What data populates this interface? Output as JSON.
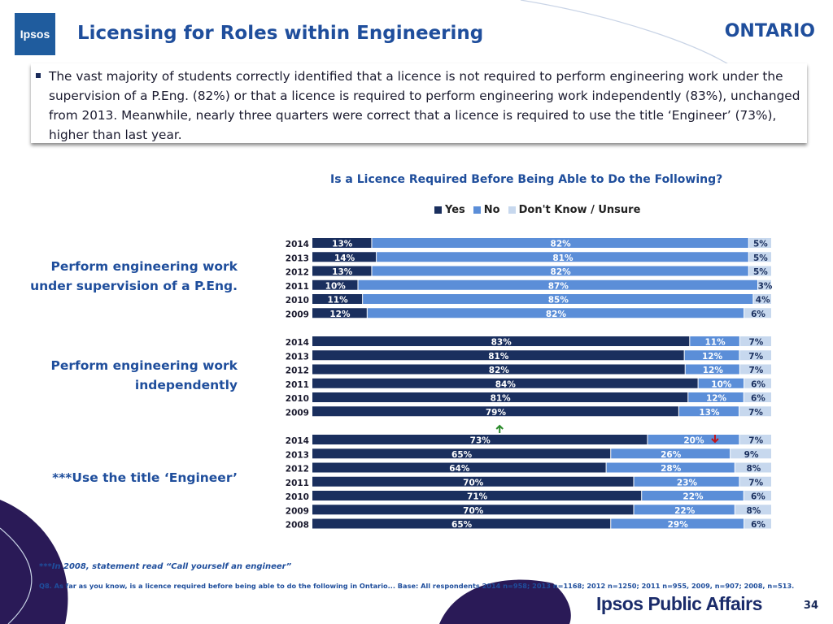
{
  "header": {
    "logo_text": "Ipsos",
    "title": "Licensing for Roles within Engineering",
    "region": "ONTARIO"
  },
  "summary": "The vast majority of students correctly identified that a licence is not required to perform engineering work under the supervision of a P.Eng. (82%) or that a licence is required to perform engineering work independently (83%), unchanged from 2013.  Meanwhile, nearly three quarters were correct that a licence is required to use the title ‘Engineer’ (73%), higher than last year.",
  "footer": {
    "footnote": "***In 2008, statement read “Call yourself an engineer”",
    "source": "Q8. As far as you know, is a licence required before being able to do the following in Ontario... Base: All respondents 2014 n=958;  2013 n=1168; 2012 n=1250; 2011 n=955, 2009, n=907; 2008, n=513.",
    "brand": "Ipsos Public Affairs",
    "page_number": "34"
  },
  "chart_data": {
    "type": "bar",
    "orientation": "horizontal",
    "stacked": true,
    "title": "Is a Licence Required Before Being Able to Do the Following?",
    "legend_position": "top",
    "xlim": [
      0,
      100
    ],
    "series_names": [
      "Yes",
      "No",
      "Don't Know / Unsure"
    ],
    "colors": {
      "Yes": "#1a2f5e",
      "No": "#5b8ed8",
      "Don't Know / Unsure": "#c7d8ee"
    },
    "groups": [
      {
        "label": "Perform engineering work under supervision of a P.Eng.",
        "rows": [
          {
            "year": "2014",
            "values": [
              13,
              82,
              5
            ]
          },
          {
            "year": "2013",
            "values": [
              14,
              81,
              5
            ]
          },
          {
            "year": "2012",
            "values": [
              13,
              82,
              5
            ]
          },
          {
            "year": "2011",
            "values": [
              10,
              87,
              3
            ]
          },
          {
            "year": "2010",
            "values": [
              11,
              85,
              4
            ]
          },
          {
            "year": "2009",
            "values": [
              12,
              82,
              6
            ]
          }
        ]
      },
      {
        "label": "Perform engineering work independently",
        "rows": [
          {
            "year": "2014",
            "values": [
              83,
              11,
              7
            ]
          },
          {
            "year": "2013",
            "values": [
              81,
              12,
              7
            ]
          },
          {
            "year": "2012",
            "values": [
              82,
              12,
              7
            ]
          },
          {
            "year": "2011",
            "values": [
              84,
              10,
              6
            ]
          },
          {
            "year": "2010",
            "values": [
              81,
              12,
              6
            ]
          },
          {
            "year": "2009",
            "values": [
              79,
              13,
              7
            ]
          }
        ]
      },
      {
        "label": "***Use the title ‘Engineer’",
        "rows": [
          {
            "year": "2014",
            "values": [
              73,
              20,
              7
            ],
            "yes_change": "up",
            "no_change": "down"
          },
          {
            "year": "2013",
            "values": [
              65,
              26,
              9
            ]
          },
          {
            "year": "2012",
            "values": [
              64,
              28,
              8
            ]
          },
          {
            "year": "2011",
            "values": [
              70,
              23,
              7
            ]
          },
          {
            "year": "2010",
            "values": [
              71,
              22,
              6
            ]
          },
          {
            "year": "2009",
            "values": [
              70,
              22,
              8
            ]
          },
          {
            "year": "2008",
            "values": [
              65,
              29,
              6
            ]
          }
        ]
      }
    ]
  }
}
